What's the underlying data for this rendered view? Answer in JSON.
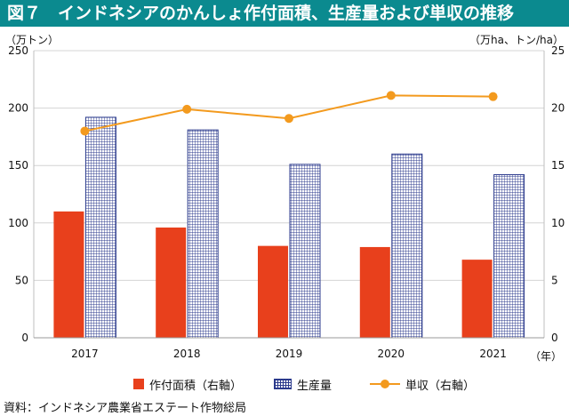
{
  "title": "図７　インドネシアのかんしょ作付面積、生産量および単収の推移",
  "left_unit": "（万トン）",
  "right_unit": "（万ha、トン/ha）",
  "x_unit": "（年）",
  "source": "資料：インドネシア農業省エステート作物総局",
  "legend": {
    "area": "作付面積（右軸）",
    "production": "生産量",
    "yield": "単収（右軸）"
  },
  "colors": {
    "area": "#e8401c",
    "production": "#2b3a8c",
    "yield": "#f39a1e",
    "title_bg": "#0b8a8f"
  },
  "chart_data": {
    "type": "bar",
    "categories": [
      "2017",
      "2018",
      "2019",
      "2020",
      "2021"
    ],
    "ylim": [
      0,
      250
    ],
    "y2lim": [
      0,
      25
    ],
    "yticks": [
      0,
      50,
      100,
      150,
      200,
      250
    ],
    "y2ticks": [
      0,
      5,
      10,
      15,
      20,
      25
    ],
    "series": [
      {
        "name": "作付面積（右軸）",
        "type": "bar",
        "axis": "right",
        "values": [
          11.0,
          9.6,
          8.0,
          7.9,
          6.8
        ]
      },
      {
        "name": "生産量",
        "type": "bar",
        "axis": "left",
        "values": [
          192,
          181,
          151,
          160,
          142
        ]
      },
      {
        "name": "単収（右軸）",
        "type": "line",
        "axis": "right",
        "values": [
          18.0,
          19.9,
          19.1,
          21.1,
          21.0
        ]
      }
    ],
    "grid": true,
    "legend_position": "bottom"
  }
}
